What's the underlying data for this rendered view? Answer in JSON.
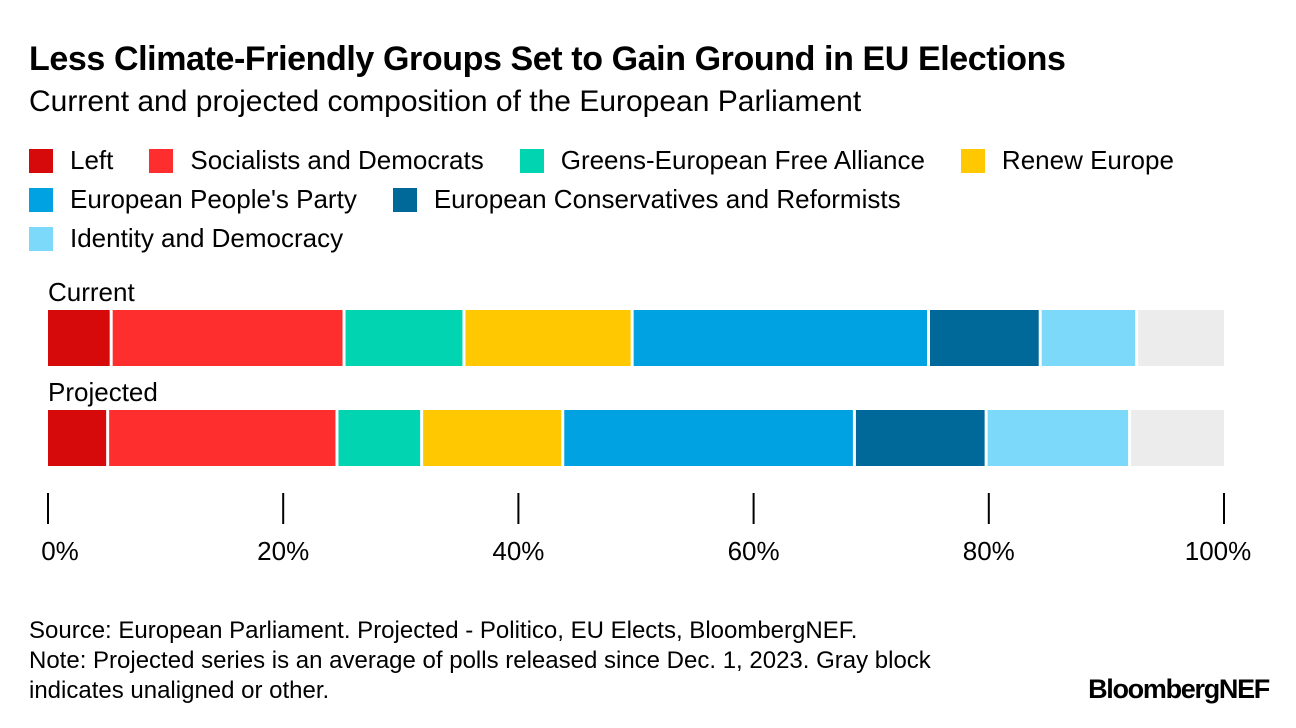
{
  "chart_data": {
    "type": "bar",
    "orientation": "horizontal-stacked",
    "title": "Less Climate-Friendly Groups Set to Gain Ground in EU Elections",
    "subtitle": "Current and projected composition of the European Parliament",
    "categories": [
      "Current",
      "Projected"
    ],
    "series": [
      {
        "name": "Left",
        "color": "#d60a0a",
        "values": [
          5.5,
          5.2
        ]
      },
      {
        "name": "Socialists and Democrats",
        "color": "#ff2e2e",
        "values": [
          19.8,
          19.5
        ]
      },
      {
        "name": "Greens-European Free Alliance",
        "color": "#00d4b1",
        "values": [
          10.2,
          7.2
        ]
      },
      {
        "name": "Renew Europe",
        "color": "#ffc800",
        "values": [
          14.3,
          12.0
        ]
      },
      {
        "name": "European People's Party",
        "color": "#00a2e2",
        "values": [
          25.2,
          24.8
        ]
      },
      {
        "name": "European Conservatives and Reformists",
        "color": "#00699a",
        "values": [
          9.5,
          11.2
        ]
      },
      {
        "name": "Identity and Democracy",
        "color": "#7dd9fa",
        "values": [
          8.2,
          12.2
        ]
      },
      {
        "name": "",
        "color": "#ececec",
        "values": [
          7.3,
          7.9
        ]
      }
    ],
    "xlim": [
      0,
      100
    ],
    "x_ticks": [
      "0%",
      "20%",
      "40%",
      "60%",
      "80%",
      "100%"
    ],
    "legend_placement": "top",
    "grid": false
  },
  "footer": {
    "source": "Source: European Parliament. Projected - Politico, EU Elects, BloombergNEF.",
    "note": "Note: Projected series is an average of polls released since Dec. 1, 2023. Gray block indicates unaligned or other."
  },
  "brand": "BloombergNEF"
}
